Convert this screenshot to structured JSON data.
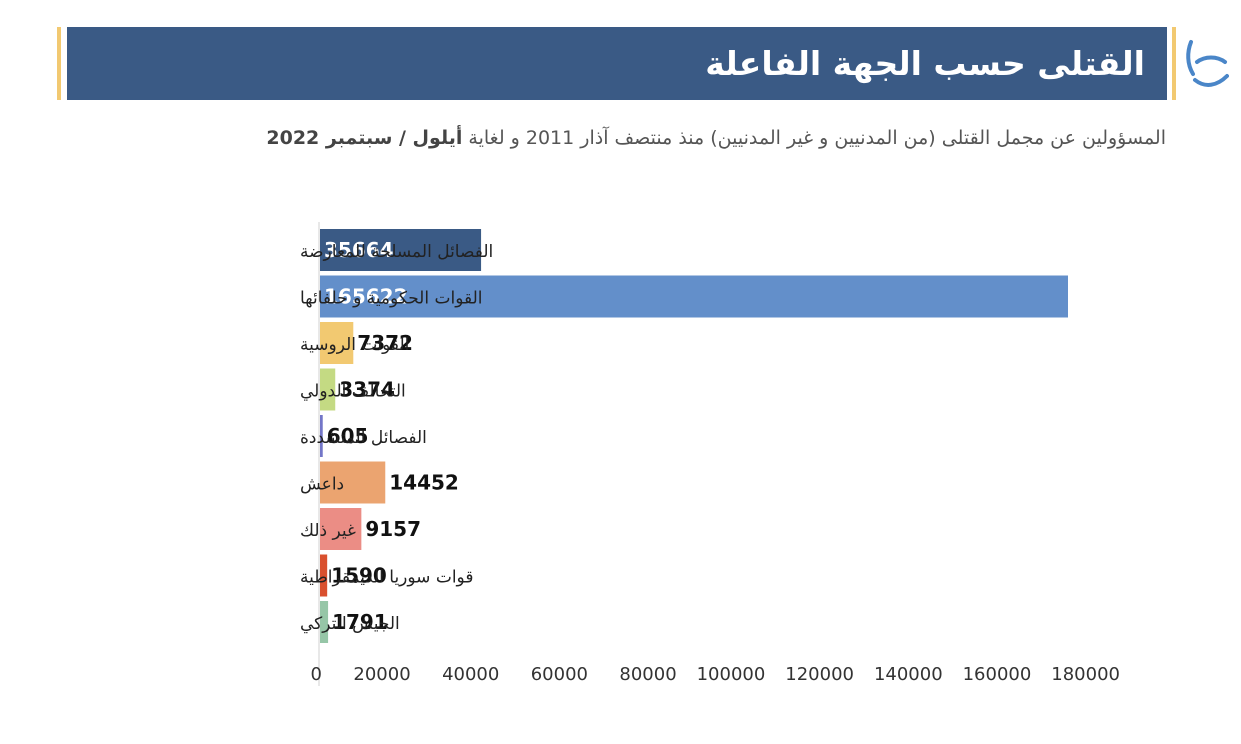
{
  "header": {
    "title": "القتلى حسب الجهة الفاعلة",
    "subtitle_main": "المسؤولين عن مجمل القتلى (من المدنيين و غير المدنيين) منذ منتصف آذار 2011 و لغاية ",
    "subtitle_strong": "أيلول / سبتمبر 2022"
  },
  "logo": {
    "icon": "brand-logo-icon",
    "color": "#4a86c8"
  },
  "chart_data": {
    "type": "bar",
    "orientation": "horizontal",
    "categories": [
      "الفصائل المسلحة للمعارضة",
      "القوات الحكومية و حلفائها",
      "القوات الروسية",
      "التحالف الدولي",
      "الفصائل المتشددة",
      "داعش",
      "غير ذلك",
      "قوات سوريا الديمقراطية",
      "الجيش التركي"
    ],
    "values": [
      35664,
      165622,
      7372,
      3374,
      605,
      14452,
      9157,
      1590,
      1791
    ],
    "data_labels": [
      "35664",
      "165622",
      "7372",
      "3374",
      "605",
      "14452",
      "9157",
      "1590",
      "1791"
    ],
    "colors": [
      "#3a5a85",
      "#638fca",
      "#f2c971",
      "#c4da83",
      "#7376c8",
      "#eba470",
      "#eb8d85",
      "#d9502e",
      "#96c6a7"
    ],
    "x_ticks": [
      "0",
      "20000",
      "40000",
      "60000",
      "80000",
      "100000",
      "120000",
      "140000",
      "160000",
      "180000"
    ],
    "xlim": [
      0,
      180000
    ],
    "grid": false,
    "legend": "none"
  }
}
